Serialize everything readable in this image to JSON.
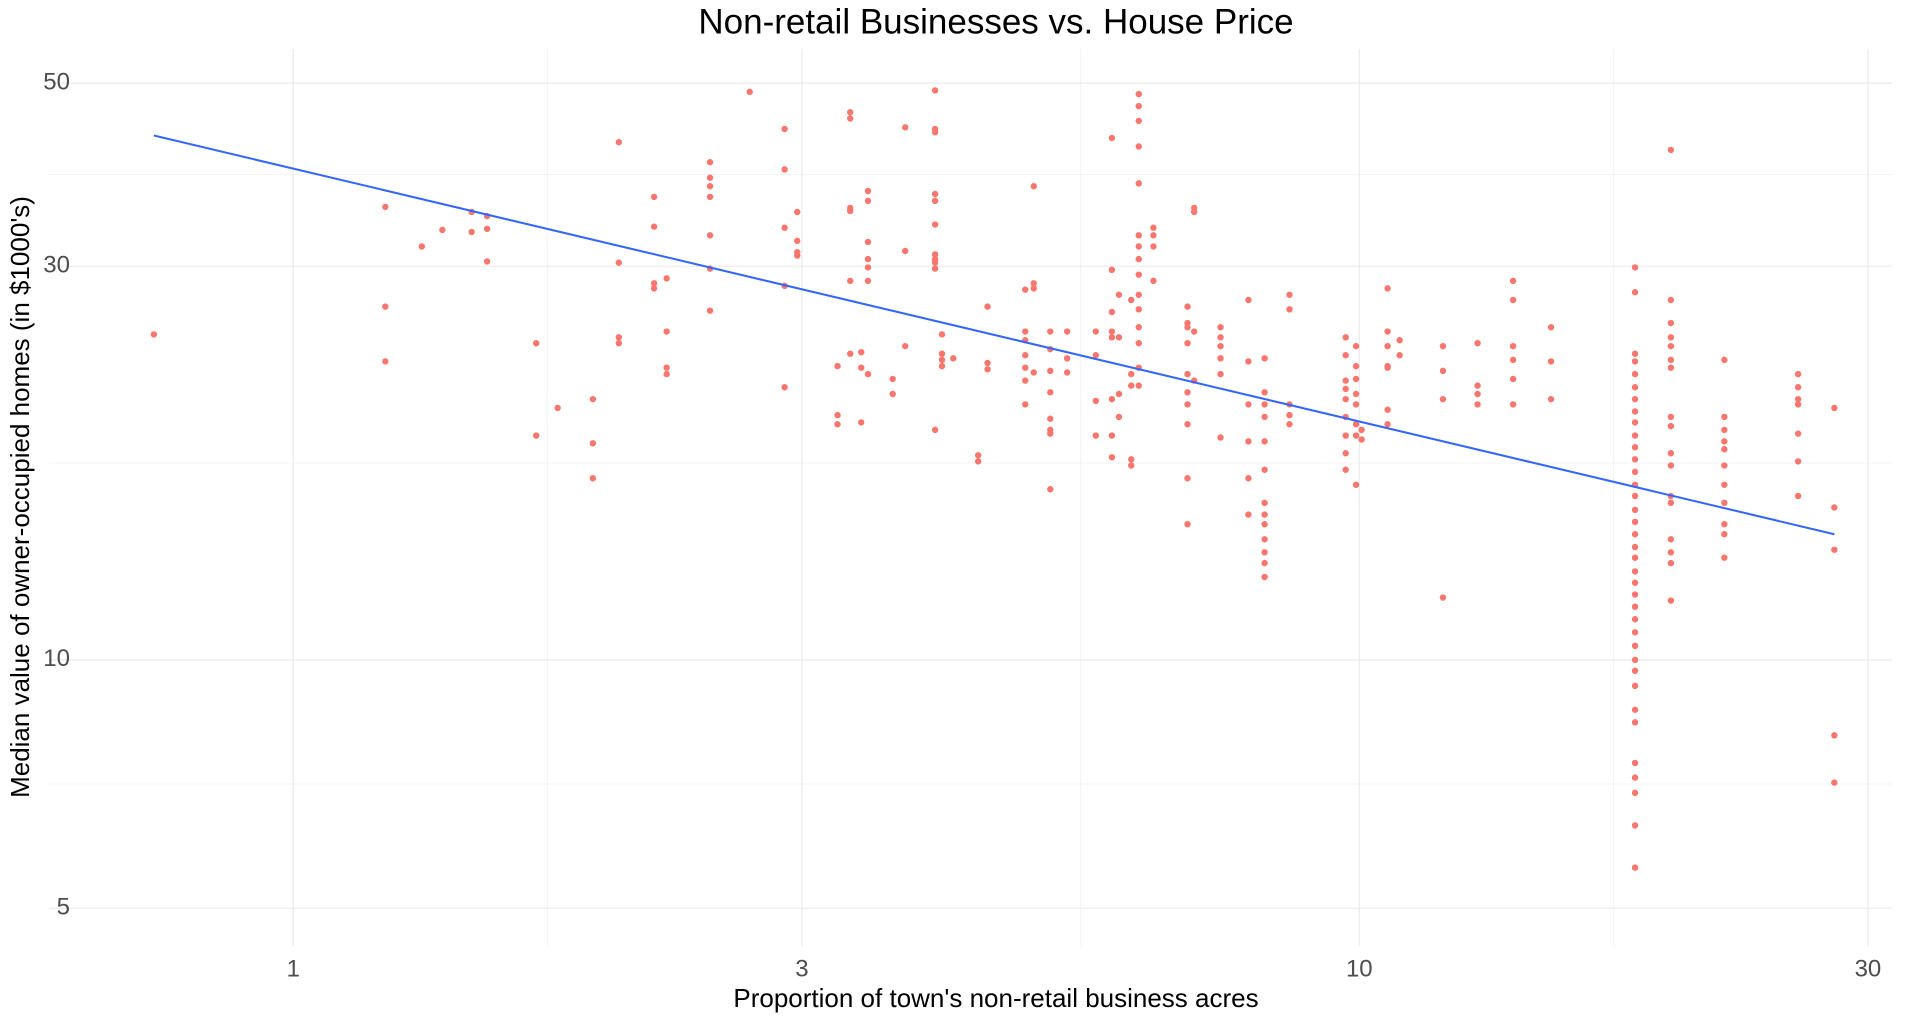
{
  "chart_data": {
    "type": "scatter",
    "title": "Non-retail Businesses vs. House Price",
    "x_label": "Proportion of town's non-retail business acres",
    "y_label": "Median value of owner-occupied homes (in $1000's)",
    "x_log": true,
    "y_log": true,
    "grid": true,
    "color": "#F8766D",
    "xlim": [
      0.59,
      31.6
    ],
    "ylim": [
      4.5,
      55
    ],
    "xticks": [
      1,
      3,
      10,
      30
    ],
    "yticks": [
      5,
      10,
      30,
      50
    ],
    "trend": {
      "color": "#3366FF",
      "x": [
        0.74,
        27.9
      ],
      "y": [
        43.2,
        14.2
      ]
    },
    "x": [
      0.74,
      1.22,
      1.22,
      1.22,
      1.32,
      1.38,
      1.47,
      1.47,
      1.52,
      1.52,
      1.52,
      1.69,
      1.69,
      1.77,
      1.91,
      1.91,
      1.91,
      2.02,
      2.02,
      2.02,
      2.02,
      2.18,
      2.18,
      2.18,
      2.18,
      2.24,
      2.24,
      2.24,
      2.24,
      2.46,
      2.46,
      2.46,
      2.46,
      2.46,
      2.46,
      2.46,
      2.68,
      2.89,
      2.89,
      2.89,
      2.89,
      2.89,
      2.97,
      2.97,
      2.97,
      2.97,
      3.24,
      3.24,
      3.24,
      3.33,
      3.33,
      3.33,
      3.33,
      3.33,
      3.33,
      3.41,
      3.41,
      3.41,
      3.46,
      3.46,
      3.46,
      3.46,
      3.46,
      3.46,
      3.46,
      3.65,
      3.65,
      3.75,
      3.75,
      3.75,
      4.0,
      4.0,
      4.0,
      4.0,
      4.0,
      4.0,
      4.0,
      4.0,
      4.0,
      4.0,
      4.0,
      4.06,
      4.06,
      4.06,
      4.06,
      4.16,
      4.39,
      4.39,
      4.48,
      4.48,
      4.48,
      4.86,
      4.86,
      4.86,
      4.86,
      4.86,
      4.86,
      4.86,
      4.95,
      4.95,
      4.95,
      4.95,
      5.13,
      5.13,
      5.13,
      5.13,
      5.13,
      5.13,
      5.13,
      5.13,
      5.32,
      5.32,
      5.32,
      5.66,
      5.66,
      5.66,
      5.66,
      5.86,
      5.86,
      5.86,
      5.86,
      5.86,
      5.86,
      5.86,
      5.86,
      5.95,
      5.95,
      5.95,
      5.95,
      6.11,
      6.11,
      6.11,
      6.11,
      6.11,
      6.21,
      6.21,
      6.21,
      6.21,
      6.21,
      6.21,
      6.21,
      6.21,
      6.21,
      6.21,
      6.21,
      6.21,
      6.21,
      6.21,
      6.21,
      6.41,
      6.41,
      6.41,
      6.41,
      6.9,
      6.9,
      6.9,
      6.9,
      6.9,
      6.9,
      6.9,
      6.9,
      6.9,
      6.9,
      7.0,
      7.0,
      7.0,
      7.0,
      7.41,
      7.41,
      7.41,
      7.41,
      7.41,
      7.41,
      7.87,
      7.87,
      7.87,
      7.87,
      7.87,
      7.87,
      8.15,
      8.15,
      8.15,
      8.15,
      8.15,
      8.15,
      8.15,
      8.15,
      8.15,
      8.15,
      8.15,
      8.15,
      8.15,
      8.6,
      8.6,
      8.6,
      8.6,
      8.6,
      9.71,
      9.71,
      9.71,
      9.71,
      9.71,
      9.71,
      9.71,
      9.71,
      9.71,
      9.93,
      9.93,
      9.93,
      9.93,
      9.93,
      9.93,
      9.93,
      9.93,
      10.05,
      10.05,
      10.63,
      10.63,
      10.63,
      10.63,
      10.63,
      10.63,
      10.63,
      10.91,
      10.91,
      11.98,
      11.98,
      11.98,
      11.98,
      12.91,
      12.91,
      12.91,
      12.91,
      13.94,
      13.94,
      13.94,
      13.94,
      13.94,
      13.94,
      15.13,
      15.13,
      15.13,
      18.14,
      18.14,
      18.14,
      18.14,
      18.14,
      18.14,
      18.14,
      18.14,
      18.14,
      18.14,
      18.14,
      18.14,
      18.14,
      18.14,
      18.14,
      18.14,
      18.14,
      18.14,
      18.14,
      18.14,
      18.14,
      18.14,
      18.14,
      18.14,
      18.14,
      18.14,
      18.14,
      18.14,
      18.14,
      18.14,
      18.14,
      18.14,
      18.14,
      18.14,
      18.14,
      18.14,
      18.14,
      19.6,
      19.6,
      19.6,
      19.6,
      19.6,
      19.6,
      19.6,
      19.6,
      19.6,
      19.6,
      19.6,
      19.6,
      19.6,
      19.6,
      19.6,
      19.6,
      19.6,
      22.0,
      22.0,
      22.0,
      22.0,
      22.0,
      22.0,
      22.0,
      22.0,
      22.0,
      22.0,
      22.0,
      25.8,
      25.8,
      25.8,
      25.8,
      25.8,
      25.8,
      25.8,
      27.9,
      27.9,
      27.9,
      27.9,
      27.9
    ],
    "values": [
      24.8,
      35.4,
      26.8,
      23.0,
      31.7,
      33.2,
      34.9,
      33.0,
      34.5,
      33.3,
      30.4,
      24.2,
      18.7,
      20.2,
      20.7,
      18.3,
      16.6,
      42.4,
      30.3,
      24.6,
      24.2,
      36.4,
      33.5,
      28.6,
      28.2,
      29.0,
      25.0,
      22.6,
      22.2,
      40.1,
      38.4,
      37.5,
      36.4,
      32.7,
      29.8,
      26.5,
      48.8,
      44.0,
      39.3,
      33.4,
      28.4,
      21.4,
      34.9,
      32.2,
      31.2,
      30.9,
      22.7,
      19.8,
      19.3,
      46.1,
      45.3,
      35.3,
      35.0,
      28.8,
      23.5,
      23.6,
      22.6,
      19.4,
      37.0,
      36.0,
      32.1,
      30.6,
      29.9,
      28.8,
      22.2,
      21.9,
      21.0,
      44.2,
      31.3,
      24.0,
      49.0,
      44.0,
      43.6,
      36.7,
      36.0,
      33.7,
      31.0,
      30.6,
      30.3,
      29.8,
      19.0,
      24.8,
      23.5,
      23.1,
      22.7,
      23.2,
      17.7,
      17.4,
      26.8,
      22.9,
      22.5,
      28.1,
      25.0,
      24.4,
      23.4,
      22.6,
      21.8,
      20.4,
      37.5,
      28.6,
      28.2,
      22.3,
      25.0,
      23.8,
      22.4,
      21.1,
      19.6,
      19.0,
      18.8,
      16.1,
      25.0,
      23.2,
      22.3,
      25.0,
      23.4,
      20.6,
      18.7,
      42.9,
      29.7,
      26.4,
      25.0,
      24.6,
      20.7,
      18.7,
      17.6,
      27.7,
      24.6,
      21.0,
      19.7,
      27.3,
      22.2,
      21.5,
      17.5,
      17.2,
      48.5,
      46.9,
      45.0,
      41.9,
      37.8,
      32.7,
      31.7,
      30.6,
      29.3,
      27.7,
      26.6,
      25.3,
      24.2,
      22.6,
      21.5,
      33.4,
      32.7,
      31.7,
      28.8,
      26.8,
      25.6,
      25.3,
      24.2,
      22.2,
      21.1,
      20.4,
      19.3,
      16.6,
      14.6,
      35.3,
      34.9,
      25.0,
      21.8,
      25.3,
      24.6,
      24.0,
      23.2,
      22.2,
      18.6,
      27.3,
      23.0,
      20.4,
      18.4,
      16.6,
      15.0,
      23.2,
      21.1,
      20.4,
      19.7,
      18.4,
      17.0,
      15.5,
      15.0,
      14.6,
      14.0,
      13.5,
      13.1,
      12.6,
      27.7,
      26.6,
      20.4,
      19.8,
      19.3,
      24.6,
      23.4,
      21.8,
      21.3,
      20.7,
      19.7,
      18.7,
      17.8,
      17.0,
      24.0,
      22.7,
      21.9,
      21.0,
      20.4,
      19.3,
      18.7,
      16.3,
      19.0,
      18.5,
      28.2,
      25.0,
      24.0,
      22.7,
      22.6,
      20.1,
      19.3,
      24.4,
      23.4,
      24.0,
      22.4,
      20.7,
      11.9,
      24.2,
      21.5,
      21.0,
      20.4,
      28.8,
      27.3,
      24.0,
      23.1,
      21.9,
      20.4,
      25.3,
      23.0,
      20.7,
      29.9,
      27.9,
      23.5,
      23.0,
      22.2,
      21.4,
      20.7,
      20.0,
      19.4,
      18.7,
      18.1,
      17.5,
      16.9,
      16.3,
      15.8,
      15.2,
      14.7,
      14.2,
      13.7,
      13.3,
      12.8,
      12.4,
      12.0,
      11.6,
      11.2,
      10.8,
      10.4,
      10.0,
      9.7,
      9.3,
      8.7,
      8.4,
      7.5,
      7.2,
      6.9,
      6.3,
      5.6,
      41.5,
      27.3,
      25.6,
      24.6,
      24.0,
      23.1,
      22.6,
      19.7,
      19.2,
      17.8,
      17.2,
      15.8,
      15.5,
      14.0,
      13.5,
      13.1,
      11.8,
      23.1,
      19.7,
      19.0,
      18.4,
      18.0,
      17.2,
      16.3,
      15.5,
      14.6,
      14.2,
      13.3,
      22.2,
      21.4,
      20.7,
      20.4,
      18.8,
      17.4,
      15.8,
      20.2,
      15.3,
      13.6,
      8.1,
      7.1
    ]
  }
}
